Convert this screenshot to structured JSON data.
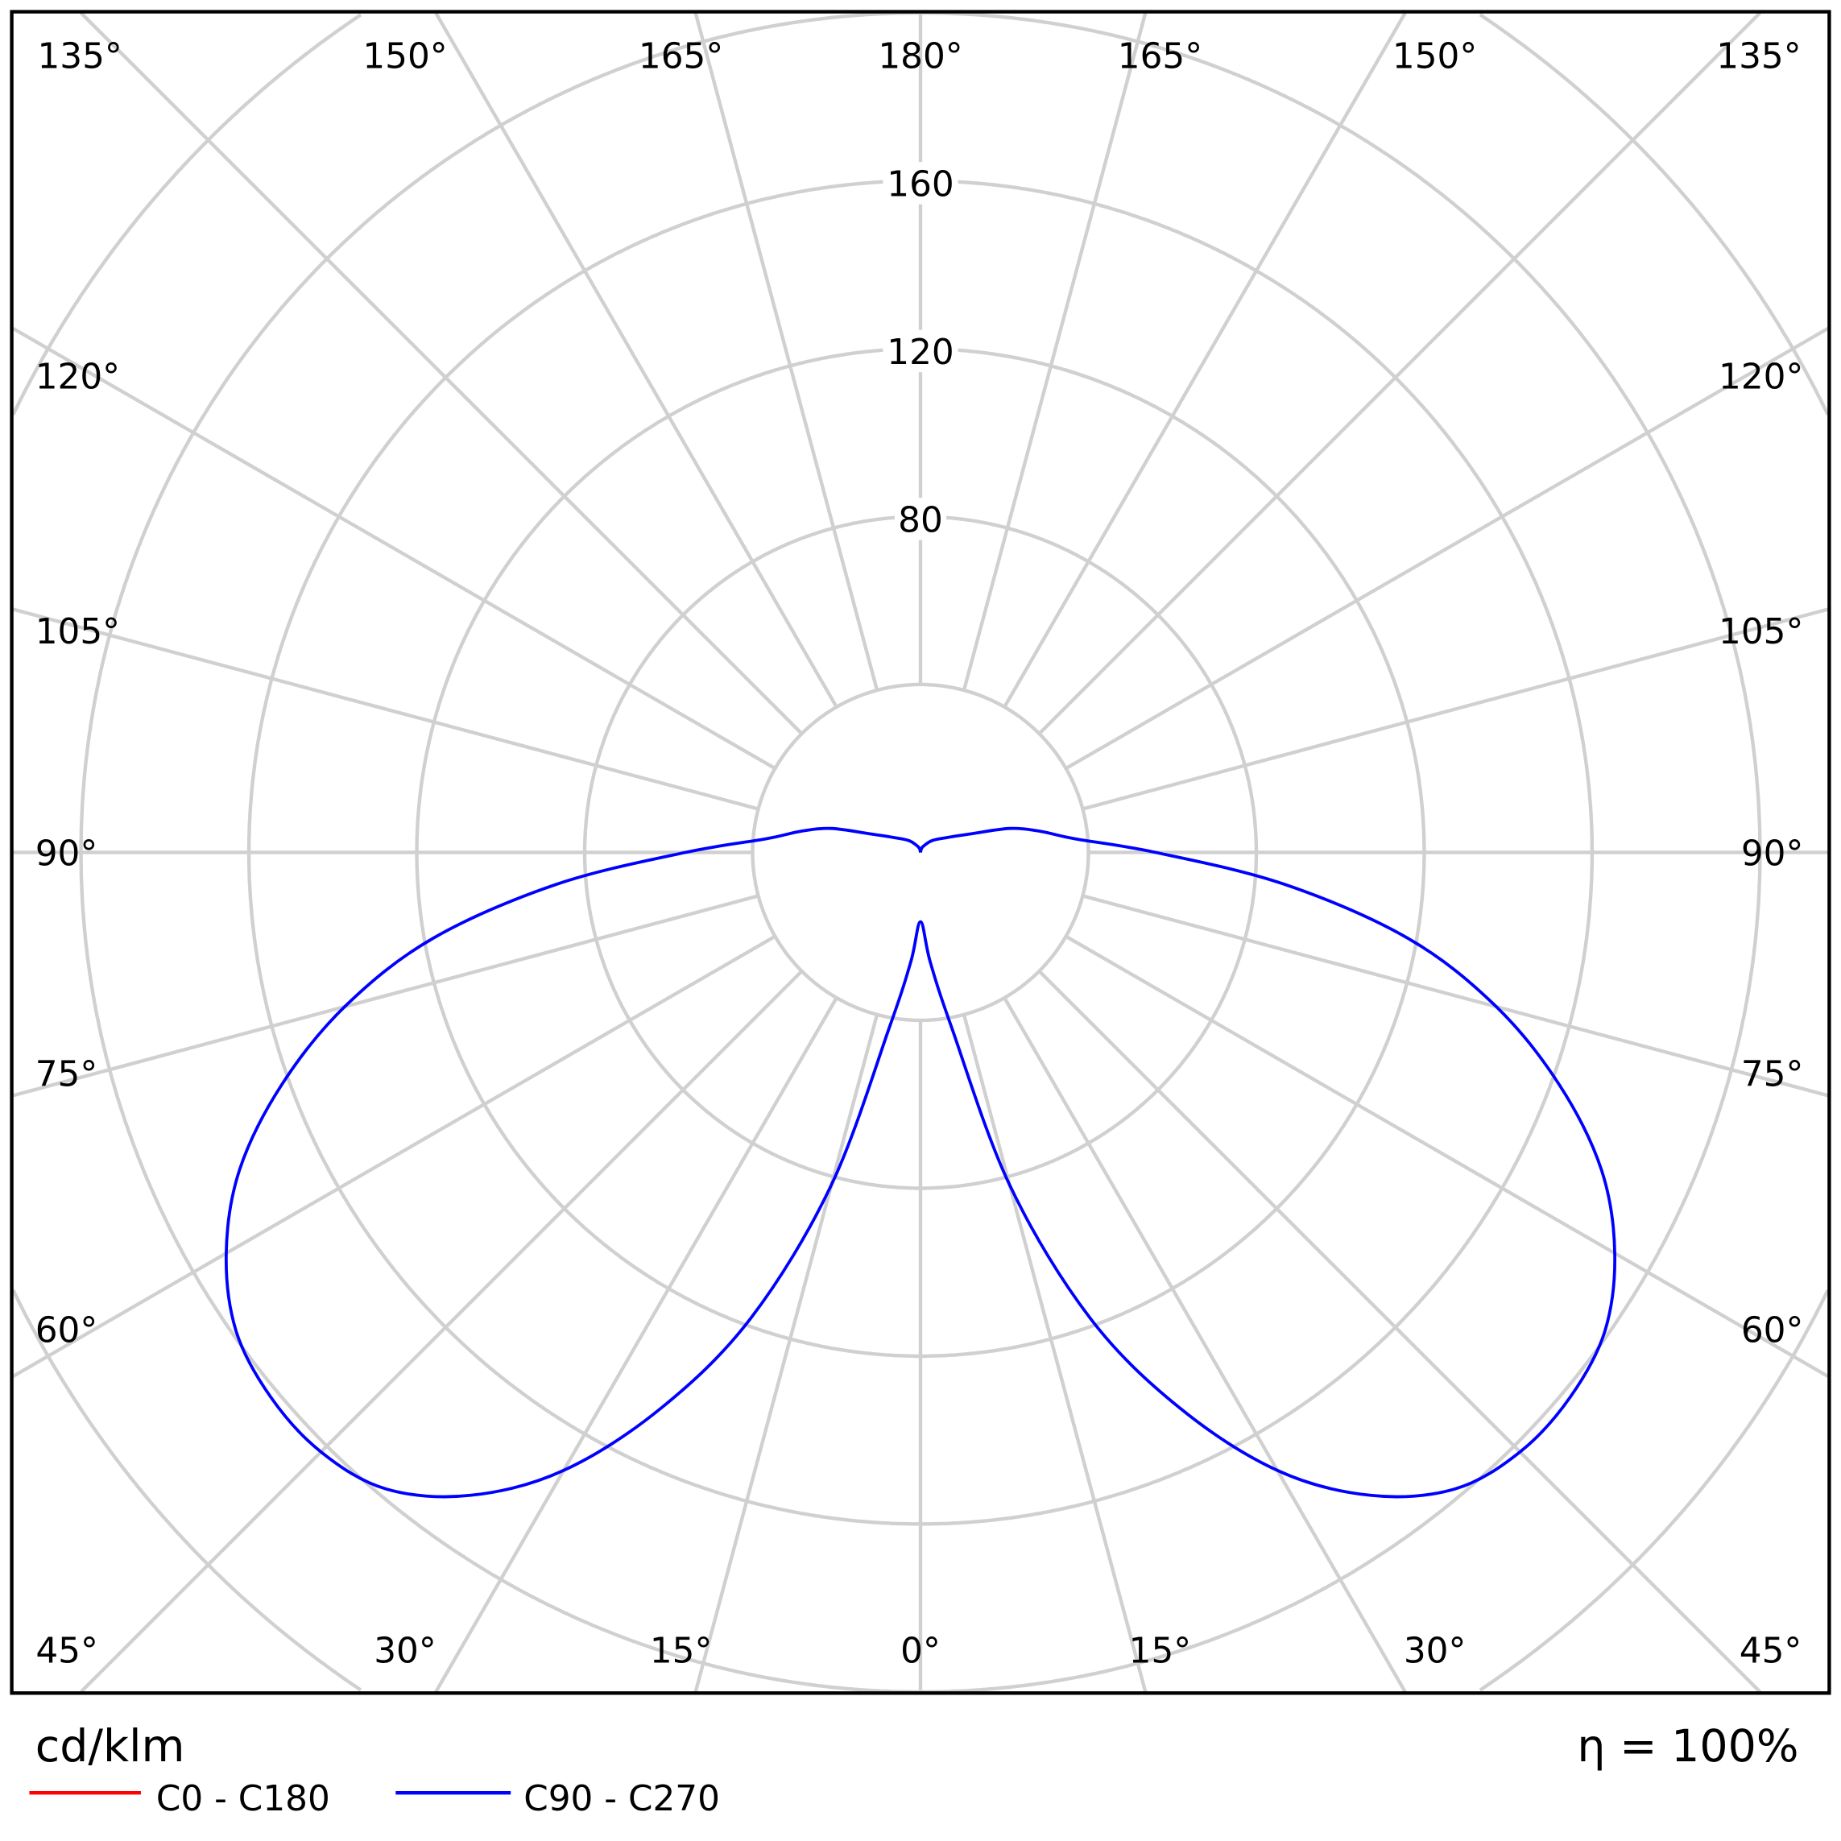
{
  "chart_data": {
    "type": "polar",
    "unit_label": "cd/klm",
    "efficiency_label": "η = 100%",
    "radial_ticks": [
      "80",
      "120",
      "160"
    ],
    "radial_tick_values": [
      80,
      120,
      160
    ],
    "radial_grid_step": 40,
    "radial_max": 240,
    "angle_labels_top": [
      "135°",
      "150°",
      "165°",
      "180°",
      "165°",
      "150°",
      "135°"
    ],
    "angle_labels_left": [
      "120°",
      "105°",
      "90°",
      "75°",
      "60°"
    ],
    "angle_labels_right": [
      "120°",
      "105°",
      "90°",
      "75°",
      "60°"
    ],
    "angle_labels_bottom": [
      "45°",
      "30°",
      "15°",
      "0°",
      "15°",
      "30°",
      "45°"
    ],
    "grid": true,
    "legend_position": "bottom-left",
    "series": [
      {
        "name": "C0 - C180",
        "color": "#ff0000",
        "angles": [],
        "values": []
      },
      {
        "name": "C90 - C270",
        "color": "#0000ff",
        "angles": [
          0,
          5,
          10,
          15,
          20,
          25,
          30,
          35,
          40,
          45,
          50,
          55,
          60,
          65,
          70,
          75,
          80,
          85,
          90,
          95,
          100,
          105,
          110,
          120,
          135,
          150,
          165,
          180
        ],
        "values": [
          16.5,
          26,
          42,
          82,
          118,
          146,
          170,
          187,
          198,
          202,
          202,
          199,
          191,
          179,
          162,
          142,
          118,
          87,
          56,
          37,
          29,
          22,
          13,
          7,
          4,
          2,
          1,
          0
        ]
      }
    ]
  }
}
